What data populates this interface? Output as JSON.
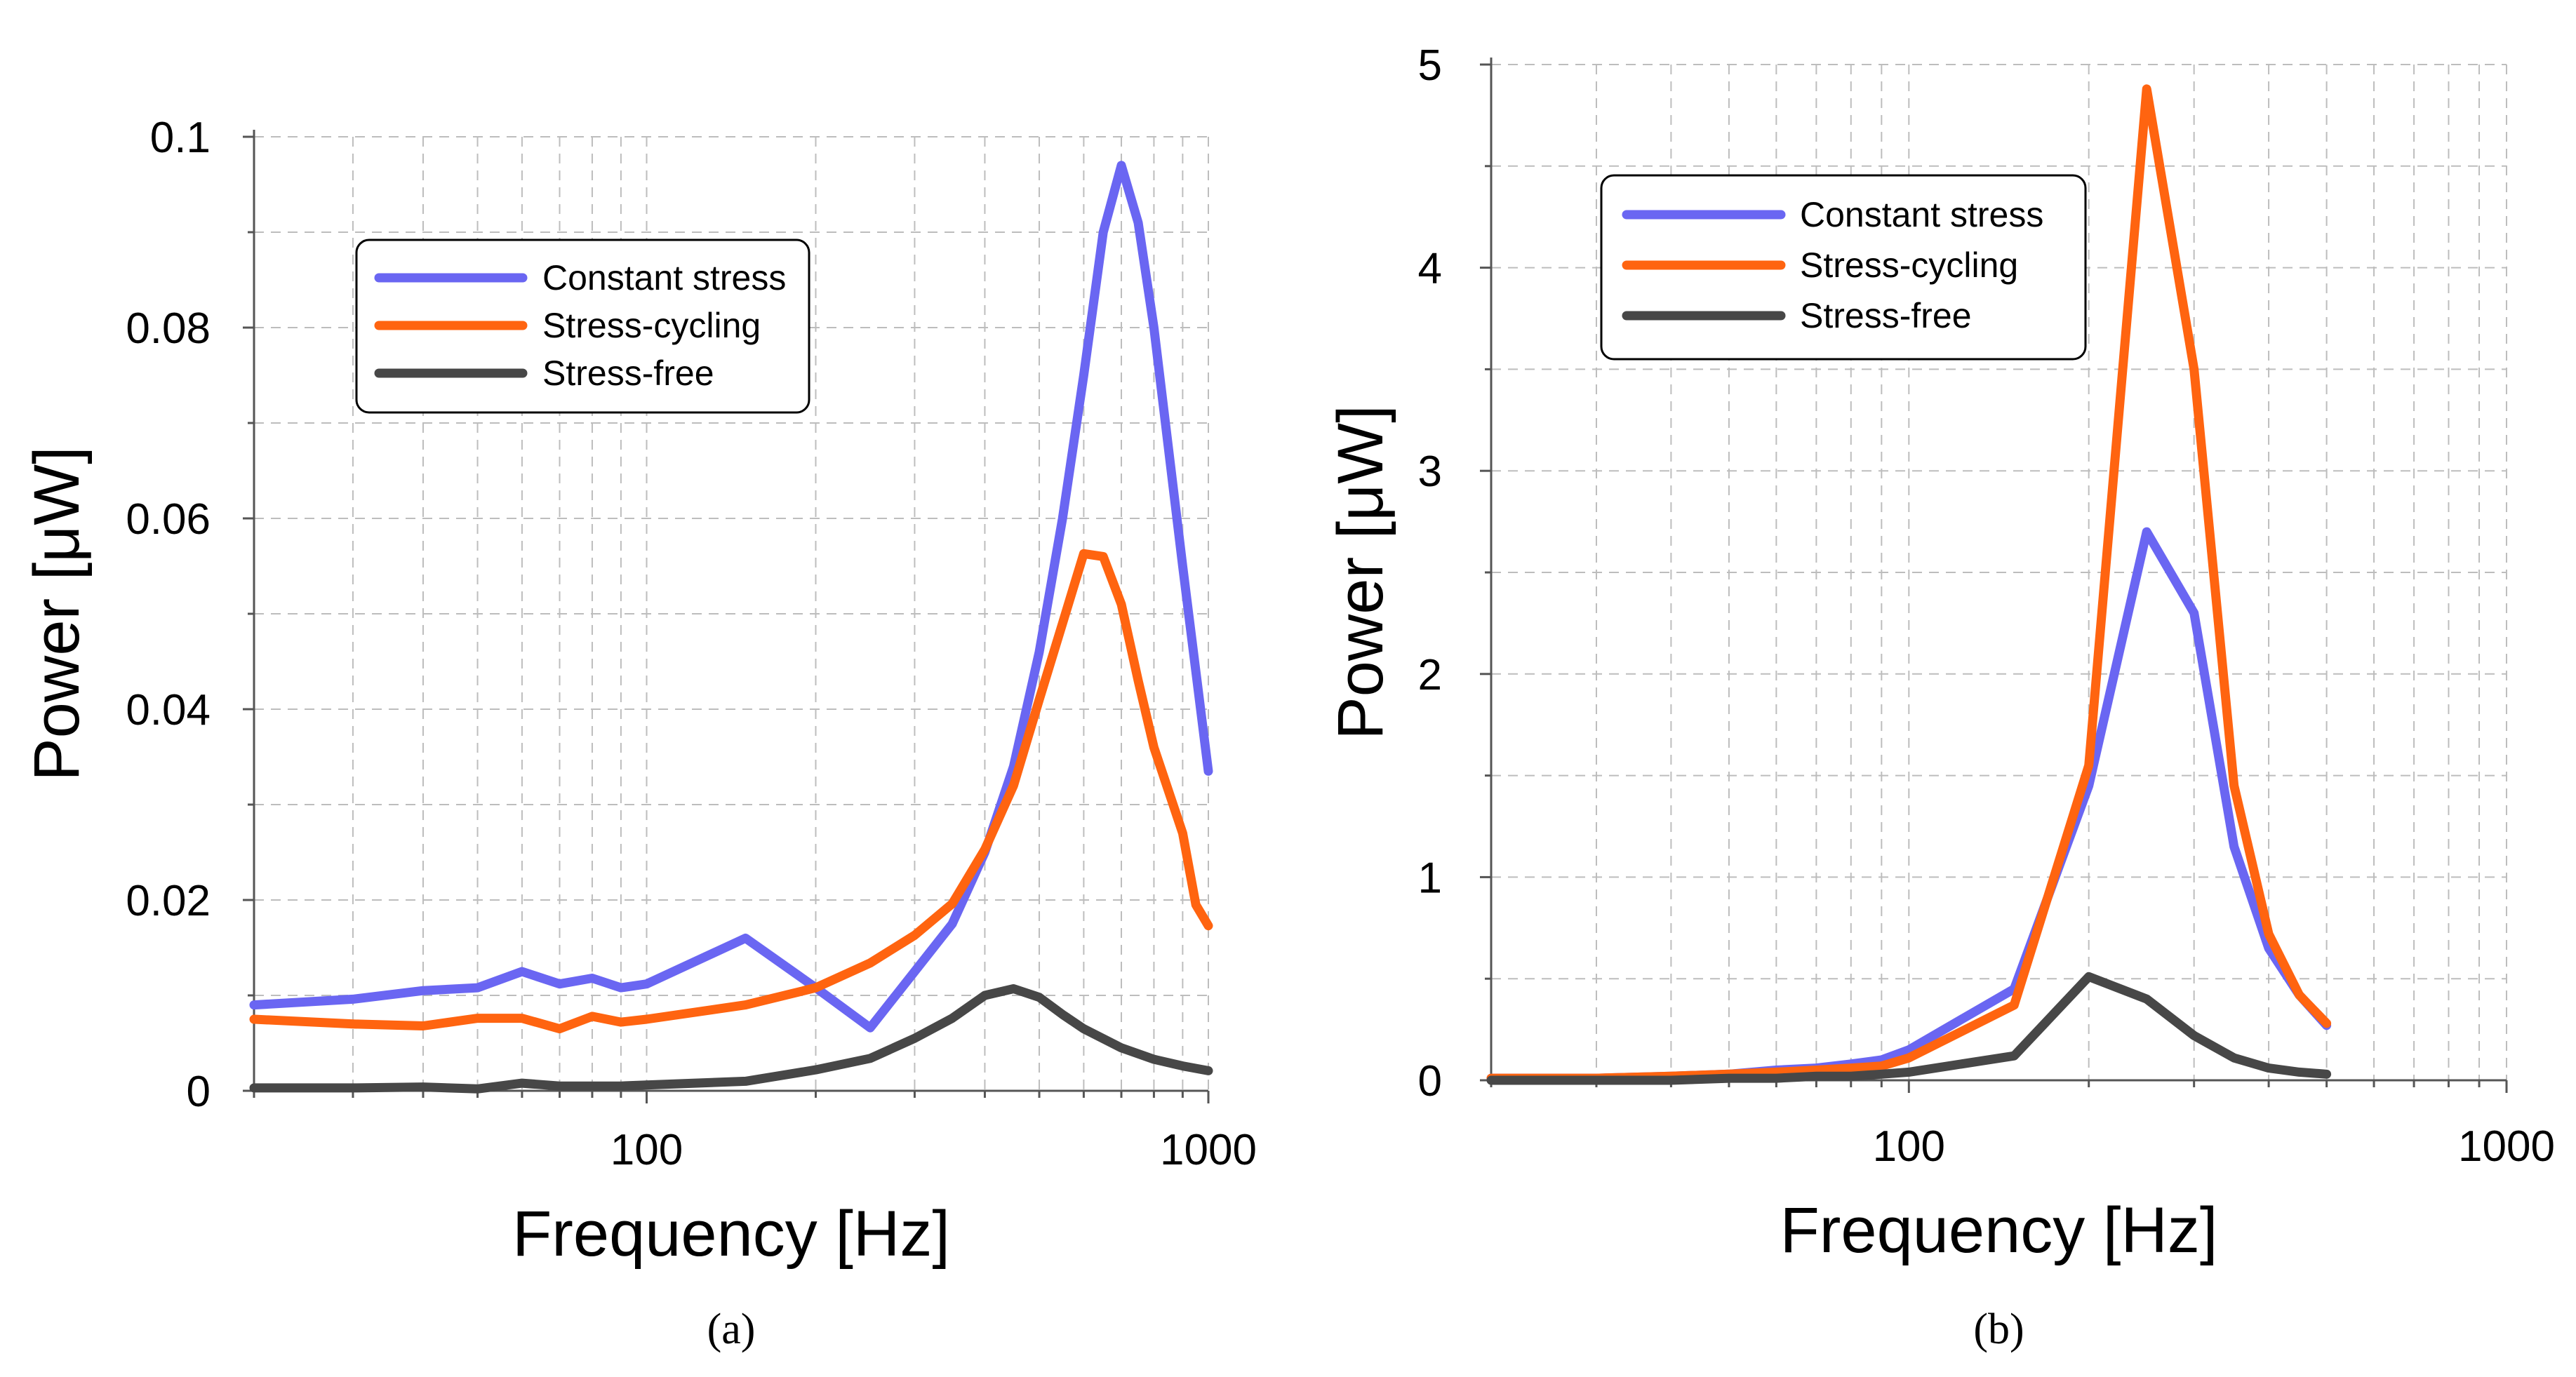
{
  "colors": {
    "constant_stress": "#6a66f2",
    "stress_cycling": "#ff6410",
    "stress_free": "#474747"
  },
  "chart_data": [
    {
      "type": "line",
      "panel_label": "(a)",
      "xlabel": "Frequency [Hz]",
      "ylabel": "Power [μW]",
      "xscale": "log",
      "xlim": [
        20,
        1000
      ],
      "ylim": [
        0,
        0.1
      ],
      "x_tick_labels": [
        "100",
        "1000"
      ],
      "y_ticks": [
        0,
        0.02,
        0.04,
        0.06,
        0.08,
        0.1
      ],
      "y_tick_labels": [
        "0",
        "0.02",
        "0.04",
        "0.06",
        "0.08",
        "0.1"
      ],
      "grid": true,
      "legend": [
        "Constant stress",
        "Stress-cycling",
        "Stress-free"
      ],
      "series": [
        {
          "name": "Constant stress",
          "x": [
            20,
            30,
            40,
            50,
            60,
            70,
            80,
            90,
            100,
            150,
            200,
            250,
            300,
            350,
            400,
            450,
            500,
            550,
            600,
            650,
            700,
            750,
            800,
            900,
            1000
          ],
          "values": [
            0.009,
            0.0096,
            0.0105,
            0.0108,
            0.0125,
            0.0112,
            0.0118,
            0.0108,
            0.0112,
            0.016,
            0.0108,
            0.0066,
            0.0125,
            0.0175,
            0.025,
            0.034,
            0.046,
            0.06,
            0.075,
            0.09,
            0.097,
            0.091,
            0.08,
            0.055,
            0.0335
          ]
        },
        {
          "name": "Stress-cycling",
          "x": [
            20,
            30,
            40,
            50,
            60,
            70,
            80,
            90,
            100,
            150,
            200,
            250,
            300,
            350,
            400,
            450,
            500,
            550,
            600,
            650,
            700,
            750,
            800,
            900,
            950,
            1000
          ],
          "values": [
            0.0075,
            0.007,
            0.0068,
            0.0076,
            0.0076,
            0.0065,
            0.0078,
            0.0072,
            0.0075,
            0.009,
            0.0108,
            0.0134,
            0.0163,
            0.0196,
            0.0253,
            0.032,
            0.041,
            0.049,
            0.0563,
            0.056,
            0.051,
            0.043,
            0.036,
            0.027,
            0.0195,
            0.0173
          ]
        },
        {
          "name": "Stress-free",
          "x": [
            20,
            30,
            40,
            50,
            60,
            70,
            80,
            90,
            100,
            150,
            200,
            250,
            300,
            350,
            400,
            450,
            500,
            550,
            600,
            700,
            800,
            900,
            1000
          ],
          "values": [
            0.0003,
            0.0003,
            0.0004,
            0.0002,
            0.0008,
            0.0005,
            0.0005,
            0.0005,
            0.0006,
            0.001,
            0.0022,
            0.0034,
            0.0055,
            0.0076,
            0.01,
            0.0107,
            0.0098,
            0.008,
            0.0065,
            0.0045,
            0.0033,
            0.0026,
            0.0021
          ]
        }
      ]
    },
    {
      "type": "line",
      "panel_label": "(b)",
      "xlabel": "Frequency [Hz]",
      "ylabel": "Power [μW]",
      "xscale": "log",
      "xlim": [
        20,
        1000
      ],
      "ylim": [
        0,
        5
      ],
      "x_tick_labels": [
        "100",
        "1000"
      ],
      "y_ticks": [
        0,
        1,
        2,
        3,
        4,
        5
      ],
      "y_tick_labels": [
        "0",
        "1",
        "2",
        "3",
        "4",
        "5"
      ],
      "grid": true,
      "legend": [
        "Constant stress",
        "Stress-cycling",
        "Stress-free"
      ],
      "series": [
        {
          "name": "Constant stress",
          "x": [
            20,
            30,
            40,
            50,
            60,
            70,
            80,
            90,
            100,
            150,
            200,
            250,
            300,
            350,
            400,
            450,
            500
          ],
          "values": [
            0.01,
            0.01,
            0.02,
            0.03,
            0.05,
            0.06,
            0.08,
            0.1,
            0.15,
            0.45,
            1.45,
            2.7,
            2.3,
            1.15,
            0.65,
            0.42,
            0.27
          ]
        },
        {
          "name": "Stress-cycling",
          "x": [
            20,
            30,
            40,
            50,
            60,
            70,
            80,
            90,
            100,
            150,
            200,
            250,
            300,
            350,
            400,
            450,
            500
          ],
          "values": [
            0.01,
            0.01,
            0.02,
            0.03,
            0.04,
            0.05,
            0.06,
            0.07,
            0.11,
            0.37,
            1.55,
            4.88,
            3.5,
            1.45,
            0.72,
            0.42,
            0.28
          ]
        },
        {
          "name": "Stress-free",
          "x": [
            20,
            30,
            40,
            50,
            60,
            70,
            80,
            90,
            100,
            150,
            200,
            250,
            300,
            350,
            400,
            450,
            500
          ],
          "values": [
            0.0,
            0.0,
            0.0,
            0.01,
            0.01,
            0.02,
            0.02,
            0.03,
            0.04,
            0.12,
            0.51,
            0.4,
            0.22,
            0.11,
            0.06,
            0.04,
            0.03
          ]
        }
      ]
    }
  ]
}
